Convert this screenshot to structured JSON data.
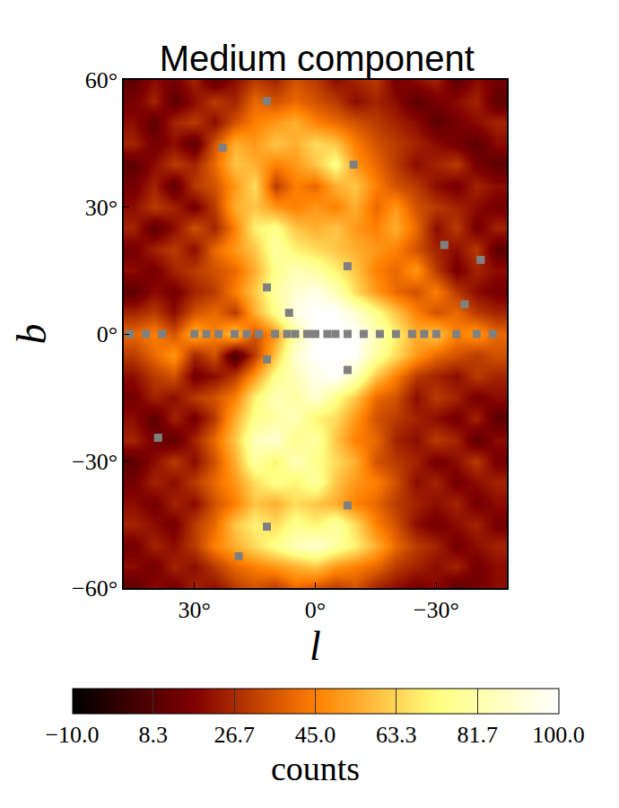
{
  "chart_data": {
    "type": "heatmap",
    "title": "Medium component",
    "x_label": "l",
    "y_label": "b",
    "x": [
      45,
      40,
      35,
      30,
      25,
      20,
      15,
      10,
      5,
      0,
      -5,
      -10,
      -15,
      -20,
      -25,
      -30,
      -35,
      -40,
      -45
    ],
    "y": [
      60,
      55,
      50,
      45,
      40,
      35,
      30,
      25,
      20,
      15,
      10,
      5,
      0,
      -5,
      -10,
      -15,
      -20,
      -25,
      -30,
      -35,
      -40,
      -45,
      -50,
      -55,
      -60
    ],
    "cells": [
      [
        10,
        20,
        15,
        25,
        10,
        20,
        30,
        25,
        35,
        30,
        20,
        25,
        30,
        15,
        20,
        25,
        10,
        20,
        15
      ],
      [
        15,
        25,
        10,
        20,
        30,
        25,
        40,
        35,
        40,
        35,
        30,
        20,
        25,
        20,
        10,
        15,
        20,
        25,
        10
      ],
      [
        20,
        10,
        25,
        30,
        20,
        35,
        45,
        50,
        55,
        45,
        40,
        35,
        30,
        25,
        20,
        10,
        15,
        20,
        25
      ],
      [
        25,
        15,
        20,
        10,
        35,
        55,
        50,
        60,
        55,
        65,
        60,
        45,
        35,
        30,
        25,
        20,
        15,
        10,
        20
      ],
      [
        10,
        20,
        30,
        25,
        40,
        60,
        55,
        45,
        50,
        60,
        75,
        50,
        40,
        30,
        20,
        25,
        30,
        15,
        10
      ],
      [
        15,
        25,
        10,
        30,
        35,
        50,
        65,
        30,
        45,
        40,
        55,
        60,
        45,
        35,
        30,
        20,
        15,
        25,
        20
      ],
      [
        20,
        30,
        25,
        15,
        30,
        55,
        60,
        50,
        45,
        50,
        45,
        55,
        40,
        50,
        35,
        30,
        25,
        20,
        15
      ],
      [
        25,
        10,
        20,
        35,
        25,
        45,
        70,
        75,
        60,
        55,
        60,
        50,
        45,
        55,
        40,
        20,
        30,
        15,
        25
      ],
      [
        15,
        25,
        30,
        20,
        40,
        50,
        60,
        80,
        70,
        65,
        60,
        55,
        50,
        45,
        35,
        25,
        20,
        30,
        10
      ],
      [
        20,
        15,
        25,
        30,
        35,
        40,
        55,
        75,
        85,
        80,
        70,
        60,
        45,
        40,
        50,
        30,
        15,
        25,
        20
      ],
      [
        10,
        20,
        15,
        25,
        30,
        45,
        60,
        80,
        90,
        95,
        85,
        65,
        50,
        40,
        35,
        45,
        30,
        20,
        15
      ],
      [
        25,
        30,
        20,
        35,
        40,
        30,
        55,
        75,
        95,
        100,
        100,
        90,
        75,
        60,
        45,
        35,
        40,
        30,
        25
      ],
      [
        40,
        45,
        35,
        55,
        45,
        60,
        35,
        50,
        80,
        100,
        100,
        100,
        85,
        70,
        55,
        60,
        45,
        50,
        40
      ],
      [
        30,
        40,
        50,
        25,
        35,
        5,
        30,
        60,
        90,
        100,
        100,
        100,
        80,
        65,
        50,
        40,
        35,
        30,
        35
      ],
      [
        20,
        30,
        35,
        15,
        20,
        30,
        50,
        75,
        85,
        95,
        100,
        85,
        60,
        45,
        30,
        25,
        20,
        30,
        25
      ],
      [
        15,
        25,
        20,
        30,
        35,
        45,
        70,
        85,
        80,
        90,
        75,
        60,
        40,
        35,
        20,
        30,
        25,
        15,
        20
      ],
      [
        20,
        10,
        25,
        15,
        30,
        55,
        75,
        80,
        85,
        70,
        65,
        50,
        35,
        30,
        25,
        20,
        15,
        25,
        10
      ],
      [
        25,
        15,
        10,
        25,
        40,
        60,
        85,
        90,
        75,
        80,
        60,
        45,
        40,
        25,
        20,
        30,
        25,
        10,
        20
      ],
      [
        10,
        20,
        30,
        20,
        35,
        55,
        80,
        70,
        85,
        75,
        65,
        55,
        35,
        30,
        25,
        15,
        20,
        30,
        15
      ],
      [
        15,
        25,
        20,
        30,
        40,
        50,
        65,
        75,
        70,
        80,
        60,
        50,
        45,
        35,
        20,
        25,
        15,
        20,
        25
      ],
      [
        20,
        15,
        25,
        20,
        35,
        45,
        60,
        55,
        65,
        60,
        55,
        45,
        40,
        30,
        25,
        20,
        25,
        15,
        20
      ],
      [
        25,
        20,
        15,
        30,
        40,
        60,
        70,
        65,
        75,
        70,
        80,
        65,
        45,
        35,
        20,
        15,
        20,
        25,
        15
      ],
      [
        15,
        25,
        20,
        30,
        45,
        55,
        65,
        75,
        85,
        90,
        80,
        70,
        55,
        40,
        30,
        25,
        15,
        20,
        25
      ],
      [
        20,
        15,
        25,
        20,
        30,
        40,
        45,
        50,
        55,
        60,
        50,
        45,
        40,
        30,
        25,
        20,
        25,
        15,
        20
      ],
      [
        10,
        20,
        15,
        25,
        20,
        30,
        35,
        30,
        40,
        35,
        30,
        35,
        25,
        20,
        15,
        20,
        10,
        15,
        20
      ]
    ],
    "xlim": [
      47.5,
      -47.5
    ],
    "ylim": [
      -60,
      60
    ],
    "xticks": [
      {
        "value": 30,
        "label": "30°"
      },
      {
        "value": 0,
        "label": "0°"
      },
      {
        "value": -30,
        "label": "−30°"
      }
    ],
    "yticks": [
      {
        "value": -60,
        "label": "−60°"
      },
      {
        "value": -30,
        "label": "−30°"
      },
      {
        "value": 0,
        "label": "0°"
      },
      {
        "value": 30,
        "label": "30°"
      },
      {
        "value": 60,
        "label": "60°"
      }
    ],
    "grid": true,
    "colorbar": {
      "title": "counts",
      "range": [
        -10,
        100
      ],
      "ticks": [
        {
          "value": -10,
          "label": "−10.0"
        },
        8.3,
        26.7,
        {
          "value": 45,
          "label": "45.0"
        },
        63.3,
        81.7,
        {
          "value": 100,
          "label": "100.0"
        }
      ]
    },
    "masks": {
      "color": "#808080",
      "marker": "square",
      "points": [
        [
          12,
          55
        ],
        [
          23,
          44
        ],
        [
          -9.5,
          40
        ],
        [
          -8,
          16
        ],
        [
          12,
          11
        ],
        [
          -32,
          21
        ],
        [
          -41,
          17.5
        ],
        [
          -37,
          7
        ],
        [
          12,
          -6
        ],
        [
          -8,
          -8.5
        ],
        [
          39,
          -24.5
        ],
        [
          -8,
          -40.5
        ],
        [
          12,
          -45.5
        ],
        [
          19,
          -52.5
        ],
        [
          6.5,
          5
        ],
        [
          46,
          0
        ],
        [
          42,
          0
        ],
        [
          38,
          0
        ],
        [
          30,
          0
        ],
        [
          27,
          0
        ],
        [
          24,
          0
        ],
        [
          20,
          0
        ],
        [
          17,
          0
        ],
        [
          14,
          0
        ],
        [
          10,
          0
        ],
        [
          7,
          0
        ],
        [
          5,
          0
        ],
        [
          2,
          0
        ],
        [
          0,
          0
        ],
        [
          -3,
          0
        ],
        [
          -5,
          0
        ],
        [
          -8,
          0
        ],
        [
          -12,
          0
        ],
        [
          -16,
          0
        ],
        [
          -20,
          0
        ],
        [
          -24,
          0
        ],
        [
          -27,
          0
        ],
        [
          -30,
          0
        ],
        [
          -35,
          0
        ],
        [
          -40,
          0
        ],
        [
          -44,
          0
        ]
      ]
    }
  }
}
